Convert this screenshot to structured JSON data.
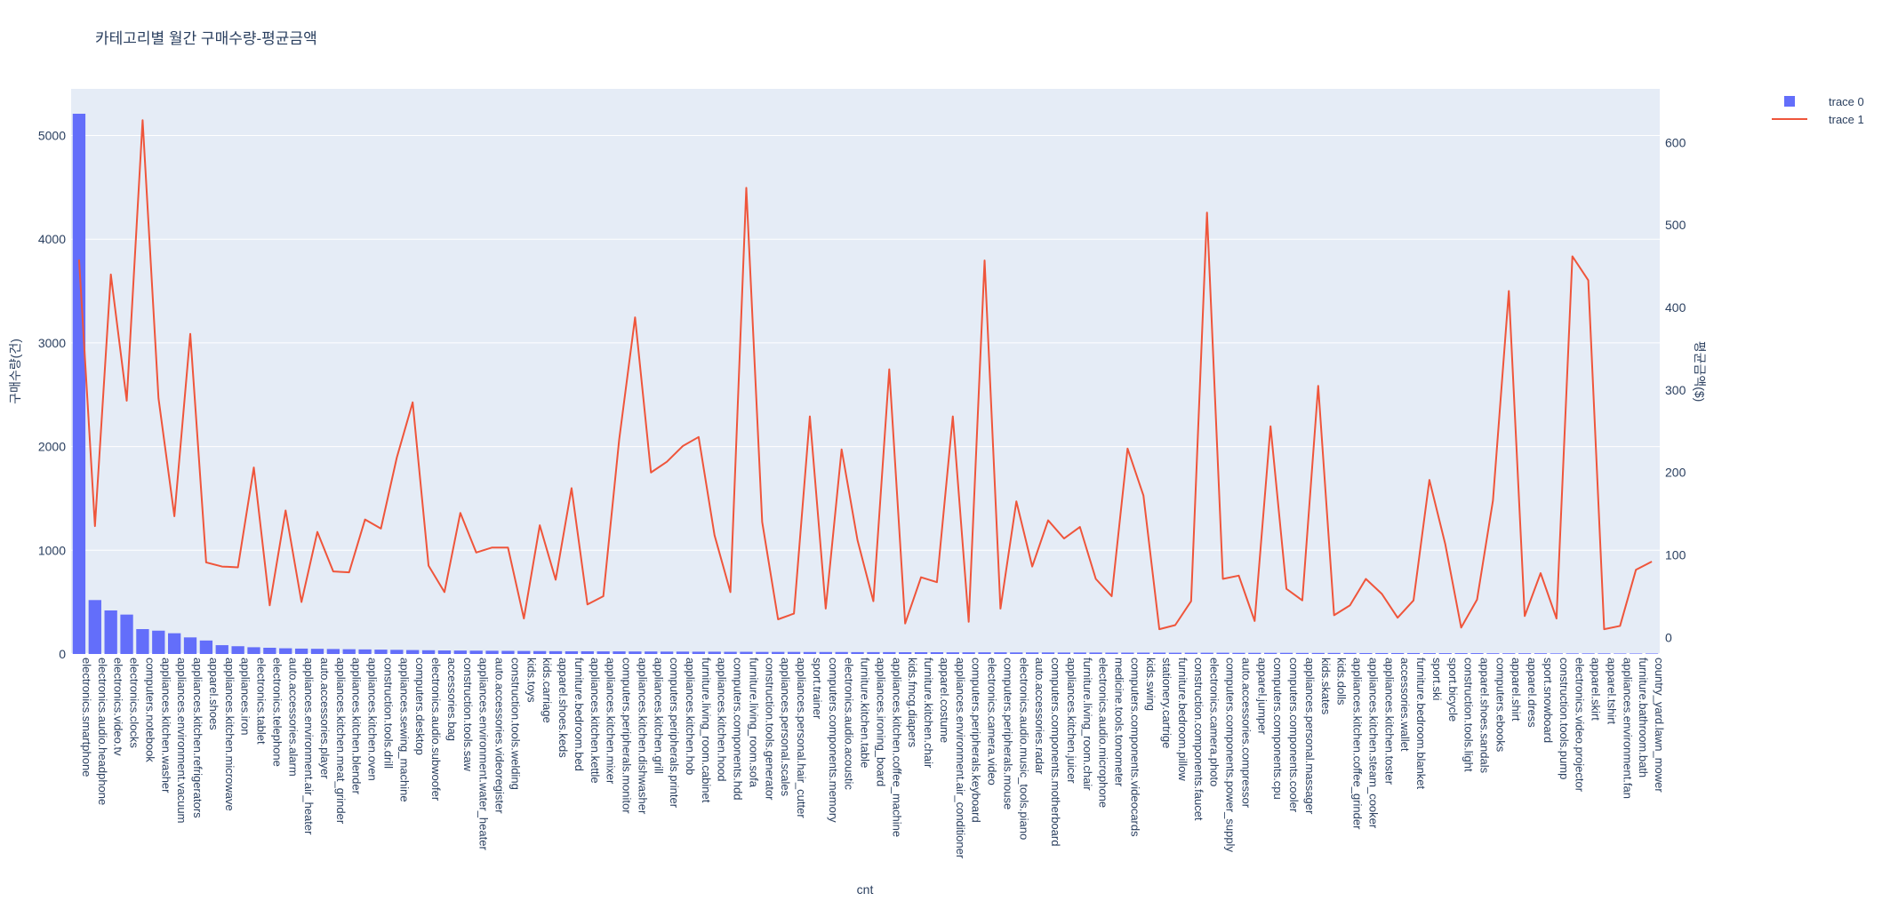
{
  "chart_data": {
    "type": "bar",
    "title": "카테고리별 월간 구매수량-평균금액",
    "xlabel": "cnt",
    "ylabel": "구매수량(건)",
    "y2label": "평균금액($)",
    "ylim": [
      0,
      5450
    ],
    "y2lim": [
      -20,
      665
    ],
    "yticks": [
      0,
      1000,
      2000,
      3000,
      4000,
      5000
    ],
    "y2ticks": [
      0,
      100,
      200,
      300,
      400,
      500,
      600
    ],
    "legend_position": "top-right",
    "grid": true,
    "categories": [
      "electronics.smartphone",
      "electronics.audio.headphone",
      "electronics.video.tv",
      "electronics.clocks",
      "computers.notebook",
      "appliances.kitchen.washer",
      "appliances.environment.vacuum",
      "appliances.kitchen.refrigerators",
      "apparel.shoes",
      "appliances.kitchen.microwave",
      "appliances.iron",
      "electronics.tablet",
      "electronics.telephone",
      "auto.accessories.alarm",
      "appliances.environment.air_heater",
      "auto.accessories.player",
      "appliances.kitchen.meat_grinder",
      "appliances.kitchen.blender",
      "appliances.kitchen.oven",
      "construction.tools.drill",
      "appliances.sewing_machine",
      "computers.desktop",
      "electronics.audio.subwoofer",
      "accessories.bag",
      "construction.tools.saw",
      "appliances.environment.water_heater",
      "auto.accessories.videoregister",
      "construction.tools.welding",
      "kids.toys",
      "kids.carriage",
      "apparel.shoes.keds",
      "furniture.bedroom.bed",
      "appliances.kitchen.kettle",
      "appliances.kitchen.mixer",
      "computers.peripherals.monitor",
      "appliances.kitchen.dishwasher",
      "appliances.kitchen.grill",
      "computers.peripherals.printer",
      "appliances.kitchen.hob",
      "furniture.living_room.cabinet",
      "appliances.kitchen.hood",
      "computers.components.hdd",
      "furniture.living_room.sofa",
      "construction.tools.generator",
      "appliances.personal.scales",
      "appliances.personal.hair_cutter",
      "sport.trainer",
      "computers.components.memory",
      "electronics.audio.acoustic",
      "furniture.kitchen.table",
      "appliances.ironing_board",
      "appliances.kitchen.coffee_machine",
      "kids.fmcg.diapers",
      "furniture.kitchen.chair",
      "apparel.costume",
      "appliances.environment.air_conditioner",
      "computers.peripherals.keyboard",
      "electronics.camera.video",
      "computers.peripherals.mouse",
      "electronics.audio.music_tools.piano",
      "auto.accessories.radar",
      "computers.components.motherboard",
      "appliances.kitchen.juicer",
      "furniture.living_room.chair",
      "electronics.audio.microphone",
      "medicine.tools.tonometer",
      "computers.components.videocards",
      "kids.swing",
      "stationery.cartrige",
      "furniture.bedroom.pillow",
      "construction.components.faucet",
      "electronics.camera.photo",
      "computers.components.power_supply",
      "auto.accessories.compressor",
      "apparel.jumper",
      "computers.components.cpu",
      "computers.components.cooler",
      "appliances.personal.massager",
      "kids.skates",
      "kids.dolls",
      "appliances.kitchen.coffee_grinder",
      "appliances.kitchen.steam_cooker",
      "appliances.kitchen.toster",
      "accessories.wallet",
      "furniture.bedroom.blanket",
      "sport.ski",
      "sport.bicycle",
      "construction.tools.light",
      "apparel.shoes.sandals",
      "computers.ebooks",
      "apparel.shirt",
      "apparel.dress",
      "sport.snowboard",
      "construction.tools.pump",
      "electronics.video.projector",
      "apparel.skirt",
      "apparel.tshirt",
      "appliances.environment.fan",
      "furniture.bathroom.bath",
      "country_yard.lawn_mower"
    ],
    "series": [
      {
        "name": "trace 0",
        "kind": "bar",
        "axis": "y",
        "color": "#636efa",
        "values": [
          5210,
          520,
          420,
          380,
          240,
          225,
          200,
          160,
          130,
          85,
          75,
          65,
          60,
          55,
          52,
          50,
          48,
          46,
          44,
          42,
          40,
          38,
          36,
          34,
          33,
          32,
          31,
          30,
          29,
          28,
          27,
          26,
          26,
          25,
          25,
          24,
          24,
          23,
          23,
          22,
          22,
          21,
          21,
          20,
          20,
          20,
          19,
          19,
          19,
          18,
          18,
          18,
          17,
          17,
          17,
          16,
          16,
          16,
          16,
          15,
          15,
          15,
          14,
          14,
          14,
          13,
          13,
          13,
          13,
          12,
          12,
          12,
          12,
          11,
          11,
          11,
          11,
          10,
          10,
          10,
          10,
          9,
          9,
          9,
          9,
          8,
          8,
          8,
          8,
          7,
          7,
          7,
          7,
          6,
          6,
          6,
          6,
          5,
          5,
          5
        ]
      },
      {
        "name": "trace 1",
        "kind": "line",
        "axis": "y2",
        "color": "#ef553b",
        "values": [
          458,
          135,
          440,
          287,
          627,
          290,
          147,
          368,
          91,
          86,
          85,
          206,
          39,
          154,
          43,
          128,
          80,
          79,
          143,
          132,
          218,
          285,
          87,
          55,
          151,
          103,
          109,
          109,
          23,
          136,
          70,
          181,
          40,
          50,
          240,
          388,
          200,
          213,
          232,
          243,
          124,
          55,
          545,
          140,
          22,
          29,
          268,
          35,
          228,
          118,
          44,
          325,
          17,
          73,
          67,
          268,
          19,
          457,
          35,
          165,
          86,
          142,
          120,
          134,
          71,
          50,
          229,
          172,
          10,
          15,
          44,
          515,
          71,
          75,
          20,
          256,
          59,
          45,
          305,
          27,
          39,
          71,
          53,
          24,
          45,
          191,
          113,
          12,
          46,
          166,
          420,
          26,
          78,
          23,
          462,
          433,
          10,
          14,
          82,
          92
        ]
      }
    ]
  }
}
